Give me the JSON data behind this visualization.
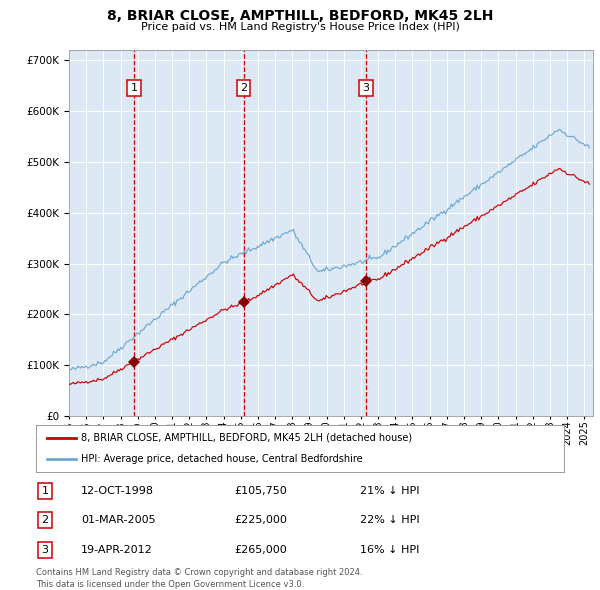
{
  "title": "8, BRIAR CLOSE, AMPTHILL, BEDFORD, MK45 2LH",
  "subtitle": "Price paid vs. HM Land Registry's House Price Index (HPI)",
  "background_color": "#dce9f5",
  "plot_bg_color": "#dce9f5",
  "grid_color": "#ffffff",
  "red_line_color": "#cc0000",
  "blue_line_color": "#6fa8d0",
  "sale_marker_color": "#880000",
  "dashed_line_color": "#cc0000",
  "legend_red_label": "8, BRIAR CLOSE, AMPTHILL, BEDFORD, MK45 2LH (detached house)",
  "legend_blue_label": "HPI: Average price, detached house, Central Bedfordshire",
  "sales": [
    {
      "num": 1,
      "date_str": "12-OCT-1998",
      "date_dec": 1998.78,
      "price": 105750
    },
    {
      "num": 2,
      "date_str": "01-MAR-2005",
      "date_dec": 2005.17,
      "price": 225000
    },
    {
      "num": 3,
      "date_str": "19-APR-2012",
      "date_dec": 2012.3,
      "price": 265000
    }
  ],
  "table_rows": [
    {
      "num": "1",
      "date": "12-OCT-1998",
      "price": "£105,750",
      "hpi_txt": "21% ↓ HPI"
    },
    {
      "num": "2",
      "date": "01-MAR-2005",
      "price": "£225,000",
      "hpi_txt": "22% ↓ HPI"
    },
    {
      "num": "3",
      "date": "19-APR-2012",
      "price": "£265,000",
      "hpi_txt": "16% ↓ HPI"
    }
  ],
  "footer": "Contains HM Land Registry data © Crown copyright and database right 2024.\nThis data is licensed under the Open Government Licence v3.0.",
  "xmin": 1995.0,
  "xmax": 2025.5,
  "ymin": 0,
  "ymax": 720000,
  "ytick_interval": 100000,
  "title_fontsize": 10,
  "subtitle_fontsize": 8,
  "tick_fontsize": 7,
  "legend_fontsize": 7,
  "table_fontsize": 8,
  "footer_fontsize": 6
}
